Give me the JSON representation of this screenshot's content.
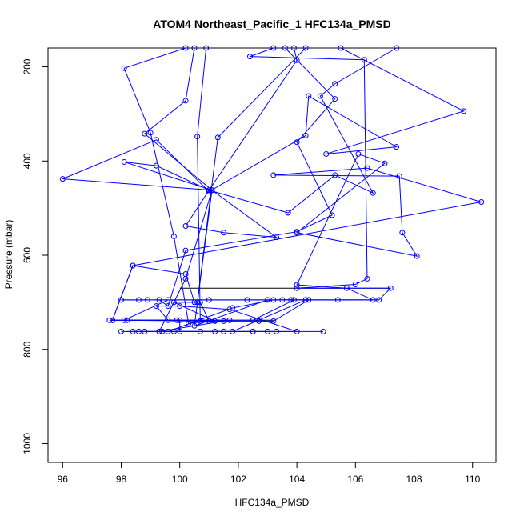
{
  "chart_data": {
    "type": "scatter",
    "title": "ATOM4 Northeast_Pacific_1 HFC134a_PMSD",
    "xlabel": "HFC134a_PMSD",
    "ylabel": "Pressure (mbar)",
    "xlim": [
      95.5,
      110.8
    ],
    "ylim": [
      1040,
      160
    ],
    "y_reversed": true,
    "x_ticks": [
      "96",
      "98",
      "100",
      "102",
      "104",
      "106",
      "108",
      "110"
    ],
    "y_ticks": [
      "200",
      "400",
      "600",
      "800",
      "1000"
    ],
    "grid": false,
    "legend": "none",
    "colors": {
      "series": "#0000ff",
      "segment": "#000000",
      "axis": "#000000"
    },
    "series": [
      {
        "values": [
          [
            100.2,
            160
          ],
          [
            98.1,
            203
          ],
          [
            99.0,
            340
          ],
          [
            99.8,
            560
          ],
          [
            100.3,
            745
          ],
          [
            101.0,
            740
          ],
          [
            100.7,
            700
          ],
          [
            100.5,
            700
          ],
          [
            100.2,
            640
          ],
          [
            98.4,
            622
          ],
          [
            97.7,
            738
          ],
          [
            100.0,
            738
          ],
          [
            100.0,
            762
          ],
          [
            98.0,
            762
          ],
          [
            98.8,
            762
          ],
          [
            103.3,
            762
          ],
          [
            104.9,
            762
          ],
          [
            102.5,
            762
          ],
          [
            100.7,
            762
          ],
          [
            99.4,
            762
          ],
          [
            99.6,
            762
          ],
          [
            101.8,
            712
          ],
          [
            103.2,
            695
          ],
          [
            105.4,
            695
          ],
          [
            106.8,
            695
          ],
          [
            107.2,
            670
          ],
          [
            104.0,
            670
          ],
          [
            106.0,
            662
          ],
          [
            106.4,
            650
          ],
          [
            106.3,
            185
          ],
          [
            102.4,
            178
          ],
          [
            103.2,
            160
          ]
        ]
      },
      {
        "values": [
          [
            100.9,
            160
          ],
          [
            100.6,
            348
          ],
          [
            100.7,
            740
          ],
          [
            101.5,
            740
          ],
          [
            102.7,
            740
          ],
          [
            103.2,
            740
          ],
          [
            104.4,
            695
          ],
          [
            103.8,
            695
          ],
          [
            102.3,
            695
          ],
          [
            98.6,
            695
          ],
          [
            98.9,
            695
          ],
          [
            99.6,
            695
          ],
          [
            98.1,
            738
          ],
          [
            99.9,
            738
          ],
          [
            101.7,
            738
          ],
          [
            99.3,
            762
          ],
          [
            98.4,
            762
          ],
          [
            101.2,
            762
          ],
          [
            101.8,
            762
          ],
          [
            104.3,
            695
          ],
          [
            103.5,
            695
          ],
          [
            101.0,
            695
          ],
          [
            98.0,
            695
          ],
          [
            99.3,
            695
          ],
          [
            99.6,
            708
          ],
          [
            100.2,
            590
          ],
          [
            104.0,
            550
          ],
          [
            105.2,
            515
          ],
          [
            104.0,
            360
          ],
          [
            105.3,
            268
          ],
          [
            103.6,
            160
          ]
        ]
      },
      {
        "values": [
          [
            104.3,
            160
          ],
          [
            101.3,
            350
          ],
          [
            100.6,
            700
          ],
          [
            99.8,
            700
          ],
          [
            101.2,
            740
          ],
          [
            100.7,
            740
          ],
          [
            98.2,
            738
          ],
          [
            97.6,
            738
          ],
          [
            99.6,
            738
          ],
          [
            99.2,
            708
          ],
          [
            100.0,
            708
          ],
          [
            101.7,
            715
          ],
          [
            104.0,
            762
          ],
          [
            101.5,
            762
          ],
          [
            99.8,
            762
          ],
          [
            98.6,
            762
          ],
          [
            103.0,
            762
          ],
          [
            102.5,
            762
          ],
          [
            99.3,
            762
          ],
          [
            100.2,
            650
          ],
          [
            101.1,
            462
          ],
          [
            96.0,
            438
          ],
          [
            99.2,
            355
          ],
          [
            101.0,
            465
          ],
          [
            104.3,
            346
          ],
          [
            104.4,
            262
          ],
          [
            107.4,
            370
          ],
          [
            105.0,
            385
          ],
          [
            109.7,
            294
          ],
          [
            105.5,
            160
          ]
        ]
      },
      {
        "values": [
          [
            103.9,
            160
          ],
          [
            104.0,
            186
          ],
          [
            101.0,
            462
          ],
          [
            100.2,
            538
          ],
          [
            101.5,
            552
          ],
          [
            103.3,
            562
          ],
          [
            101.1,
            462
          ],
          [
            98.1,
            402
          ],
          [
            99.2,
            410
          ],
          [
            101.0,
            462
          ],
          [
            103.7,
            510
          ],
          [
            105.3,
            430
          ],
          [
            106.6,
            468
          ],
          [
            104.8,
            262
          ],
          [
            105.3,
            236
          ],
          [
            107.4,
            160
          ]
        ]
      },
      {
        "values": [
          [
            100.5,
            160
          ],
          [
            100.2,
            272
          ],
          [
            98.8,
            342
          ],
          [
            101.1,
            462
          ],
          [
            100.5,
            750
          ],
          [
            103.0,
            695
          ],
          [
            106.6,
            695
          ],
          [
            105.7,
            670
          ],
          [
            104.0,
            663
          ],
          [
            106.1,
            385
          ],
          [
            107.0,
            405
          ],
          [
            104.0,
            552
          ],
          [
            108.1,
            602
          ],
          [
            107.6,
            552
          ],
          [
            107.5,
            432
          ],
          [
            103.2,
            430
          ],
          [
            106.4,
            415
          ],
          [
            110.3,
            487
          ],
          [
            98.4,
            622
          ],
          [
            97.7,
            738
          ],
          [
            102.5,
            738
          ],
          [
            103.9,
            695
          ]
        ]
      }
    ],
    "segments": [
      {
        "x1": 100.0,
        "x2": 107.2,
        "y": 670
      },
      {
        "x1": 98.0,
        "x2": 106.8,
        "y": 695
      },
      {
        "x1": 97.6,
        "x2": 103.2,
        "y": 738
      },
      {
        "x1": 98.2,
        "x2": 103.2,
        "y": 762
      }
    ]
  }
}
